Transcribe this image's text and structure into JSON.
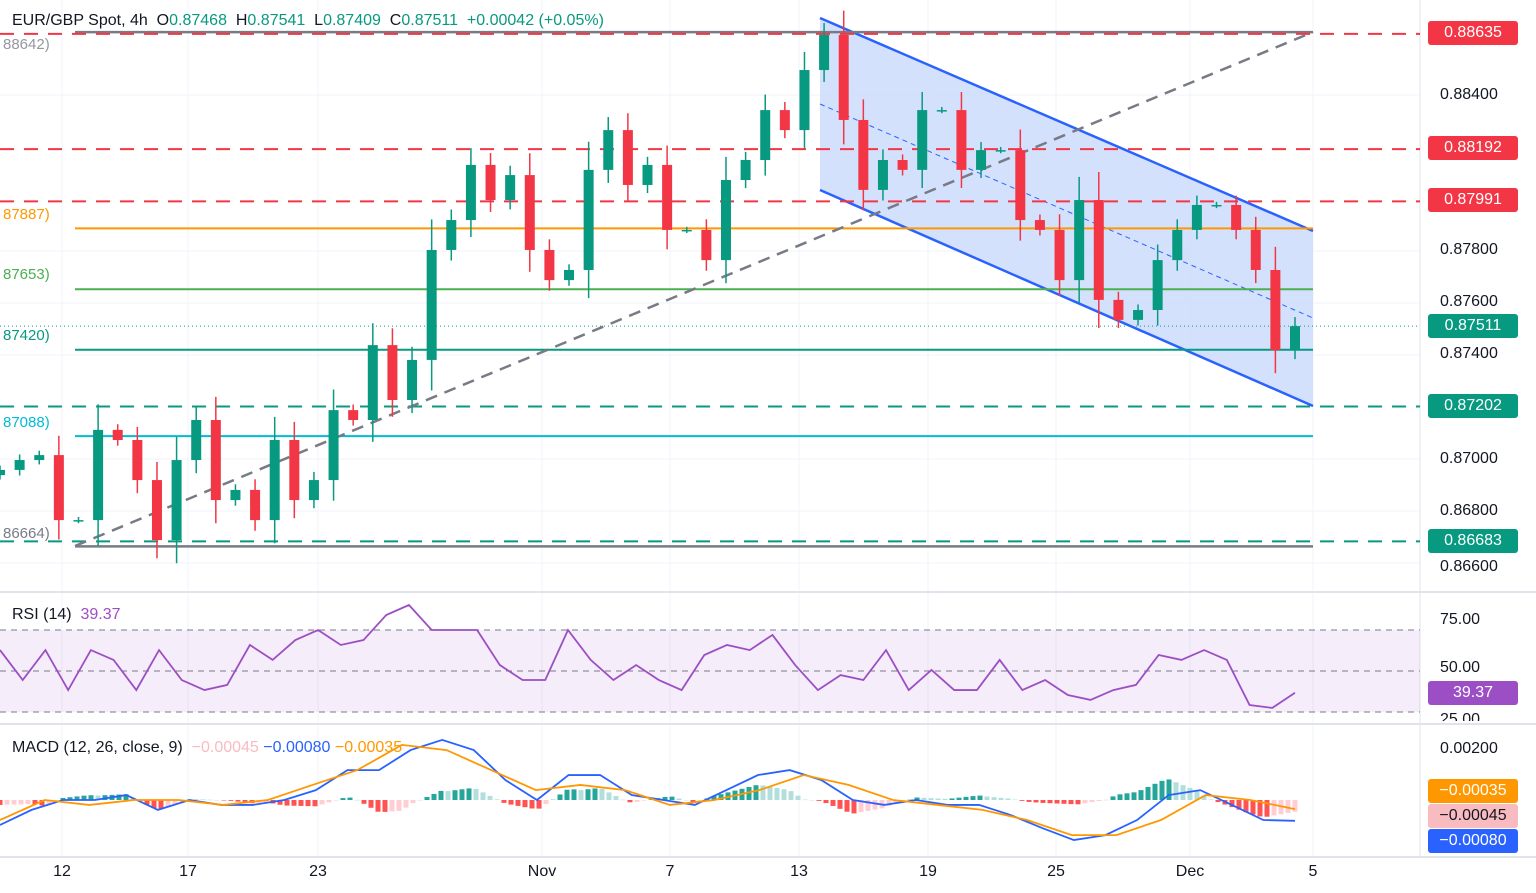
{
  "header": {
    "symbol": "EUR/GBP Spot, 4h",
    "o_label": "O",
    "o": "0.87468",
    "h_label": "H",
    "h": "0.87541",
    "l_label": "L",
    "l": "0.87409",
    "c_label": "C",
    "c": "0.87511",
    "change": "+0.00042 (+0.05%)"
  },
  "colors": {
    "up": "#089981",
    "down": "#f23645",
    "rsi": "#9c4fc4",
    "macd": "#2962ff",
    "signal": "#ff9800",
    "channel": "#2962ff",
    "channel_fill": "#c9d9fb"
  },
  "left_labels": [
    "88642)",
    "87887)",
    "87653)",
    "87420)",
    "87088)",
    "86664)"
  ],
  "price_axis": [
    "0.88400",
    "0.87800",
    "0.87600",
    "0.87400",
    "0.87000",
    "0.86800",
    "0.86600"
  ],
  "price_tags": [
    {
      "text": "0.88635",
      "color": "#f23645"
    },
    {
      "text": "0.88192",
      "color": "#f23645"
    },
    {
      "text": "0.87991",
      "color": "#f23645"
    },
    {
      "text": "0.87511",
      "color": "#089981"
    },
    {
      "text": "0.87202",
      "color": "#089981"
    },
    {
      "text": "0.86683",
      "color": "#089981"
    }
  ],
  "time_axis": [
    "12",
    "17",
    "23",
    "Nov",
    "7",
    "13",
    "19",
    "25",
    "Dec",
    "5"
  ],
  "rsi": {
    "title": "RSI (14)",
    "value": "39.37",
    "axis": [
      "75.00",
      "50.00",
      "25.00"
    ],
    "tag": "39.37"
  },
  "macd": {
    "title": "MACD (12, 26, close, 9)",
    "hist": "−0.00045",
    "macd": "−0.00080",
    "signal": "−0.00035",
    "axis": "0.00200",
    "tags": [
      "−0.00035",
      "−0.00045",
      "−0.00080"
    ]
  },
  "chart_data": {
    "type": "candlestick",
    "title": "EUR/GBP Spot, 4h",
    "ylim": [
      0.8655,
      0.8872
    ],
    "levels": {
      "red_dashed": [
        0.88635,
        0.88192,
        0.87991
      ],
      "green_dashed": [
        0.87202,
        0.86683
      ],
      "orange": 0.87887,
      "green": 0.87653,
      "teal": 0.8742,
      "cyan": 0.87088,
      "gray": [
        0.88642,
        0.86664
      ],
      "last": 0.87511
    },
    "closes": [
      0.86958,
      0.86996,
      0.87015,
      0.86765,
      0.86765,
      0.87112,
      0.87073,
      0.86919,
      0.86688,
      0.86996,
      0.8715,
      0.86842,
      0.86881,
      0.86765,
      0.87073,
      0.86842,
      0.86919,
      0.87188,
      0.8715,
      0.87438,
      0.87227,
      0.87381,
      0.87804,
      0.87919,
      0.88131,
      0.87996,
      0.88092,
      0.87804,
      0.87688,
      0.87727,
      0.88112,
      0.88265,
      0.88054,
      0.88131,
      0.87881,
      0.87881,
      0.87765,
      0.88073,
      0.8815,
      0.88342,
      0.88265,
      0.88496,
      0.88631,
      0.88304,
      0.88035,
      0.8815,
      0.88112,
      0.88342,
      0.88342,
      0.88112,
      0.88188,
      0.88188,
      0.87919,
      0.87881,
      0.87688,
      0.87996,
      0.87612,
      0.87535,
      0.87573,
      0.87765,
      0.87881,
      0.87977,
      0.87977,
      0.87881,
      0.87727,
      0.87419,
      0.87511
    ],
    "rsi_values": [
      60.2,
      45.6,
      60.2,
      40.7,
      60.2,
      55.4,
      40.7,
      60.2,
      45.6,
      40.7,
      43.2,
      62.7,
      55.4,
      65.1,
      70,
      62.7,
      65.1,
      77.3,
      82.2,
      70,
      70,
      70,
      52.9,
      45.6,
      45.6,
      70,
      55.4,
      45.6,
      52.9,
      45.6,
      40.7,
      57.8,
      62.7,
      60.2,
      67.6,
      52.9,
      40.7,
      48,
      45.6,
      60.2,
      40.7,
      50.5,
      40.7,
      40.7,
      55.4,
      40.7,
      45.6,
      38.3,
      35.9,
      40.7,
      43.2,
      57.8,
      55.4,
      60.2,
      55.4,
      33.4,
      32,
      39.37
    ],
    "macd_values": [
      -0.00096,
      -0.00038,
      0,
      0,
      0.00019,
      -0.00038,
      0,
      -0.00019,
      -0.00019,
      0,
      0.00038,
      0.00115,
      0.00115,
      0.00192,
      0.00231,
      0.00192,
      0.00077,
      0,
      0.00096,
      0.00096,
      0.00019,
      0,
      -0.00019,
      0.00038,
      0.00096,
      0.00115,
      0.00077,
      0,
      -0.00019,
      0,
      -0.00019,
      -0.00019,
      -0.00058,
      -0.00108,
      -0.00154,
      -0.00135,
      -0.00077,
      0.00019,
      0.00038,
      -0.00019,
      -0.00077,
      -0.0008
    ],
    "signal_values": [
      -0.00077,
      0,
      -0.00019,
      0,
      0,
      -0.00019,
      0,
      0.00058,
      0.00115,
      0.00212,
      0.00192,
      0.00115,
      0.00038,
      0.00058,
      0.00038,
      -0.00019,
      0,
      0.00038,
      0.00096,
      0.00058,
      0,
      -0.00019,
      -0.00038,
      -0.00077,
      -0.00135,
      -0.00135,
      -0.00077,
      0.00019,
      0,
      -0.00035
    ]
  }
}
